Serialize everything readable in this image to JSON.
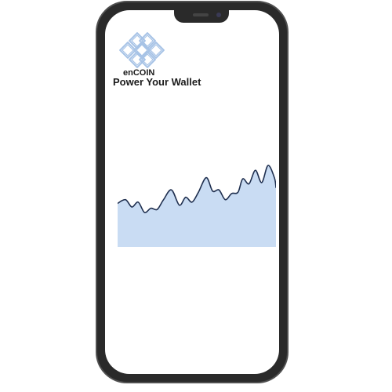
{
  "app": {
    "brand_name": "enCOIN",
    "tagline": "Power Your Wallet"
  },
  "icons": {
    "logo": "endless-knot-icon"
  },
  "colors": {
    "phone_frame": "#2a2a2a",
    "logo_stroke": "#a7c3e6",
    "chart_fill": "#c9dcf3",
    "chart_line": "#1f2f4f"
  },
  "chart_data": {
    "type": "area",
    "title": "",
    "xlabel": "",
    "ylabel": "",
    "grid": false,
    "legend": "none",
    "x": [
      0,
      5,
      9,
      13,
      17,
      21,
      25,
      29,
      34,
      39,
      43,
      47,
      51,
      56,
      60,
      64,
      68,
      72,
      76,
      79,
      83,
      87,
      91,
      95,
      99,
      100
    ],
    "ylim": [
      0,
      100
    ],
    "series": [
      {
        "values": [
          38,
          44,
          32,
          40,
          23,
          30,
          28,
          44,
          60,
          35,
          48,
          40,
          56,
          80,
          58,
          60,
          44,
          54,
          56,
          78,
          70,
          92,
          72,
          100,
          80,
          64
        ]
      }
    ]
  }
}
